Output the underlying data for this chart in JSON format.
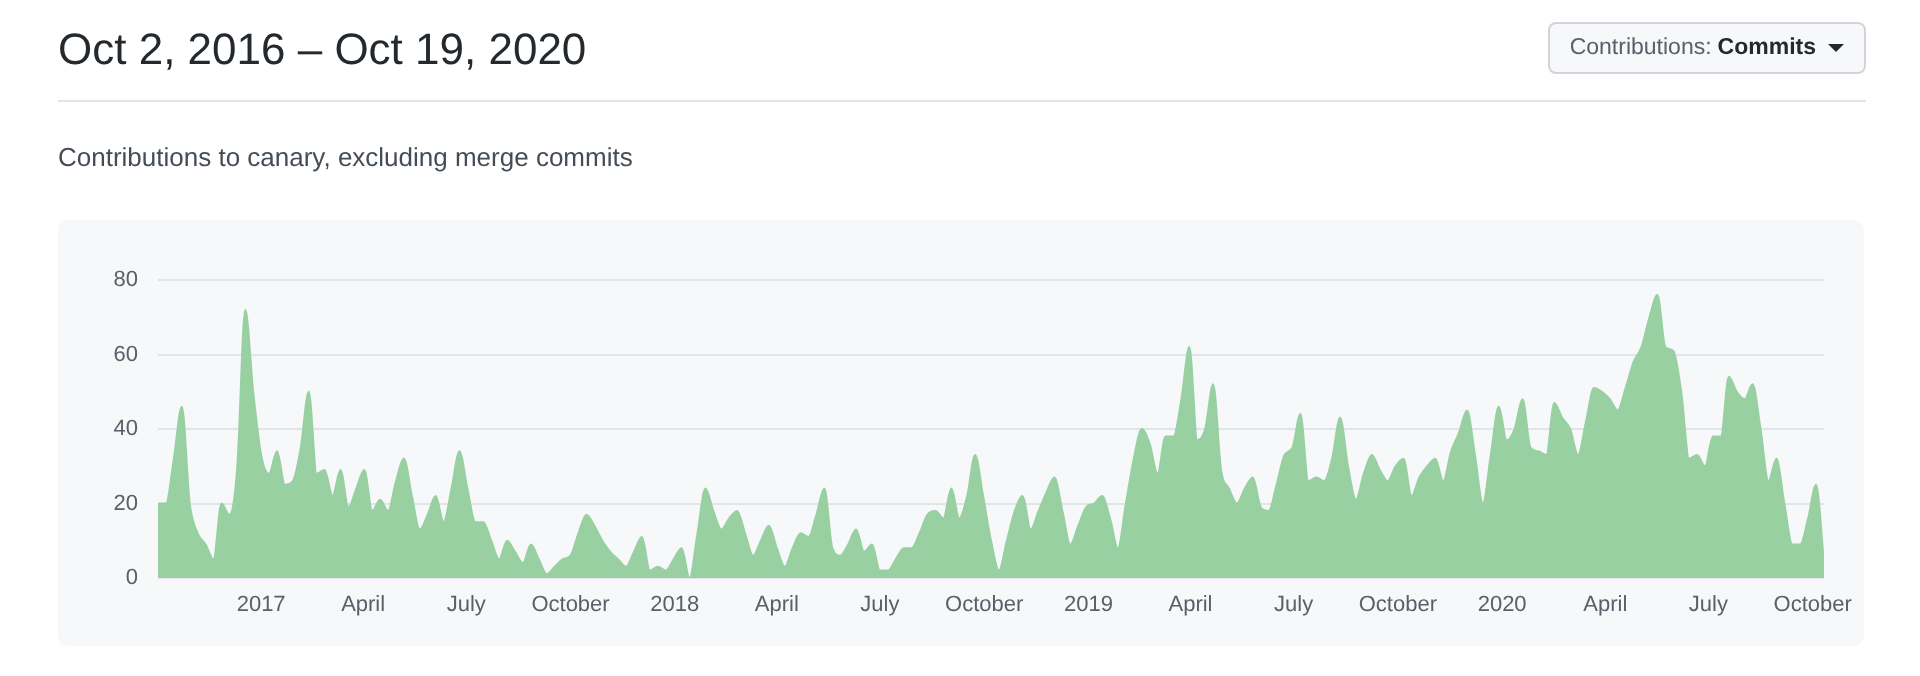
{
  "chart_data": {
    "type": "area",
    "title": "Oct 2, 2016 – Oct 19, 2020",
    "subtitle": "Contributions to canary, excluding merge commits",
    "annotations": [
      "Contributions: Commits"
    ],
    "color": "#98d0a1",
    "grid": "y",
    "xlim": [
      "2016-10-02",
      "2020-10-11"
    ],
    "xticks": [
      {
        "value": "2017-01",
        "label": "2017"
      },
      {
        "value": "2017-04",
        "label": "April"
      },
      {
        "value": "2017-07",
        "label": "July"
      },
      {
        "value": "2017-10",
        "label": "October"
      },
      {
        "value": "2018-01",
        "label": "2018"
      },
      {
        "value": "2018-04",
        "label": "April"
      },
      {
        "value": "2018-07",
        "label": "July"
      },
      {
        "value": "2018-10",
        "label": "October"
      },
      {
        "value": "2019-01",
        "label": "2019"
      },
      {
        "value": "2019-04",
        "label": "April"
      },
      {
        "value": "2019-07",
        "label": "July"
      },
      {
        "value": "2019-10",
        "label": "October"
      },
      {
        "value": "2020-01",
        "label": "2020"
      },
      {
        "value": "2020-04",
        "label": "April"
      },
      {
        "value": "2020-07",
        "label": "July"
      },
      {
        "value": "2020-10",
        "label": "October"
      }
    ],
    "ylim": [
      0,
      80
    ],
    "yticks": [
      0,
      20,
      40,
      60,
      80
    ],
    "x": [
      "2016-10-02",
      "2016-10-09",
      "2016-10-16",
      "2016-10-23",
      "2016-10-30",
      "2016-11-06",
      "2016-11-13",
      "2016-11-20",
      "2016-11-27",
      "2016-12-04",
      "2016-12-11",
      "2016-12-18",
      "2016-12-25",
      "2017-01-01",
      "2017-01-08",
      "2017-01-15",
      "2017-01-22",
      "2017-01-29",
      "2017-02-05",
      "2017-02-12",
      "2017-02-19",
      "2017-02-26",
      "2017-03-05",
      "2017-03-12",
      "2017-03-19",
      "2017-03-26",
      "2017-04-02",
      "2017-04-09",
      "2017-04-16",
      "2017-04-23",
      "2017-04-30",
      "2017-05-07",
      "2017-05-14",
      "2017-05-21",
      "2017-05-28",
      "2017-06-04",
      "2017-06-11",
      "2017-06-18",
      "2017-06-25",
      "2017-07-02",
      "2017-07-09",
      "2017-07-16",
      "2017-07-23",
      "2017-07-30",
      "2017-08-06",
      "2017-08-13",
      "2017-08-20",
      "2017-08-27",
      "2017-09-03",
      "2017-09-10",
      "2017-09-17",
      "2017-09-24",
      "2017-10-01",
      "2017-10-08",
      "2017-10-15",
      "2017-10-22",
      "2017-10-29",
      "2017-11-05",
      "2017-11-12",
      "2017-11-19",
      "2017-11-26",
      "2017-12-03",
      "2017-12-10",
      "2017-12-17",
      "2017-12-24",
      "2017-12-31",
      "2018-01-07",
      "2018-01-14",
      "2018-01-21",
      "2018-01-28",
      "2018-02-04",
      "2018-02-11",
      "2018-02-18",
      "2018-02-25",
      "2018-03-04",
      "2018-03-11",
      "2018-03-18",
      "2018-03-25",
      "2018-04-01",
      "2018-04-08",
      "2018-04-15",
      "2018-04-22",
      "2018-04-29",
      "2018-05-06",
      "2018-05-13",
      "2018-05-20",
      "2018-05-27",
      "2018-06-03",
      "2018-06-10",
      "2018-06-17",
      "2018-06-24",
      "2018-07-01",
      "2018-07-08",
      "2018-07-15",
      "2018-07-22",
      "2018-07-29",
      "2018-08-05",
      "2018-08-12",
      "2018-08-19",
      "2018-08-26",
      "2018-09-02",
      "2018-09-09",
      "2018-09-16",
      "2018-09-23",
      "2018-09-30",
      "2018-10-07",
      "2018-10-14",
      "2018-10-21",
      "2018-10-28",
      "2018-11-04",
      "2018-11-11",
      "2018-11-18",
      "2018-11-25",
      "2018-12-02",
      "2018-12-09",
      "2018-12-16",
      "2018-12-23",
      "2018-12-30",
      "2019-01-06",
      "2019-01-13",
      "2019-01-20",
      "2019-01-27",
      "2019-02-03",
      "2019-02-10",
      "2019-02-17",
      "2019-02-24",
      "2019-03-03",
      "2019-03-10",
      "2019-03-17",
      "2019-03-24",
      "2019-03-31",
      "2019-04-07",
      "2019-04-14",
      "2019-04-21",
      "2019-04-28",
      "2019-05-05",
      "2019-05-12",
      "2019-05-19",
      "2019-05-26",
      "2019-06-02",
      "2019-06-09",
      "2019-06-16",
      "2019-06-23",
      "2019-06-30",
      "2019-07-07",
      "2019-07-14",
      "2019-07-21",
      "2019-07-28",
      "2019-08-04",
      "2019-08-11",
      "2019-08-18",
      "2019-08-25",
      "2019-09-01",
      "2019-09-08",
      "2019-09-15",
      "2019-09-22",
      "2019-09-29",
      "2019-10-06",
      "2019-10-13",
      "2019-10-20",
      "2019-10-27",
      "2019-11-03",
      "2019-11-10",
      "2019-11-17",
      "2019-11-24",
      "2019-12-01",
      "2019-12-08",
      "2019-12-15",
      "2019-12-22",
      "2019-12-29",
      "2020-01-05",
      "2020-01-12",
      "2020-01-19",
      "2020-01-26",
      "2020-02-02",
      "2020-02-09",
      "2020-02-16",
      "2020-02-23",
      "2020-03-01",
      "2020-03-08",
      "2020-03-15",
      "2020-03-22",
      "2020-03-29",
      "2020-04-05",
      "2020-04-12",
      "2020-04-19",
      "2020-04-26",
      "2020-05-03",
      "2020-05-10",
      "2020-05-17",
      "2020-05-24",
      "2020-05-31",
      "2020-06-07",
      "2020-06-14",
      "2020-06-21",
      "2020-06-28",
      "2020-07-05",
      "2020-07-12",
      "2020-07-19",
      "2020-07-26",
      "2020-08-02",
      "2020-08-09",
      "2020-08-16",
      "2020-08-23",
      "2020-08-30",
      "2020-09-06",
      "2020-09-13",
      "2020-09-20",
      "2020-09-27",
      "2020-10-04",
      "2020-10-11"
    ],
    "values": [
      20,
      20,
      32,
      46,
      20,
      12,
      9,
      5,
      20,
      17,
      30,
      72,
      50,
      33,
      28,
      34,
      25,
      26,
      35,
      50,
      28,
      29,
      22,
      29,
      19,
      24,
      29,
      18,
      21,
      18,
      26,
      32,
      22,
      13,
      17,
      22,
      15,
      24,
      34,
      24,
      15,
      15,
      10,
      5,
      10,
      7,
      4,
      9,
      5,
      1,
      3,
      5,
      6,
      12,
      17,
      14,
      10,
      7,
      5,
      3,
      7,
      11,
      2,
      3,
      2,
      5,
      8,
      0,
      12,
      24,
      18,
      13,
      16,
      18,
      12,
      6,
      10,
      14,
      8,
      3,
      8,
      12,
      11,
      17,
      24,
      8,
      6,
      9,
      13,
      7,
      9,
      2,
      2,
      5,
      8,
      8,
      12,
      17,
      18,
      16,
      24,
      16,
      22,
      33,
      22,
      10,
      2,
      10,
      18,
      22,
      13,
      18,
      23,
      27,
      18,
      9,
      14,
      19,
      20,
      22,
      16,
      8,
      20,
      32,
      40,
      36,
      28,
      38,
      38,
      48,
      62,
      37,
      40,
      52,
      29,
      24,
      20,
      24,
      27,
      19,
      18,
      25,
      33,
      35,
      44,
      26,
      27,
      26,
      32,
      43,
      30,
      21,
      28,
      33,
      29,
      26,
      30,
      32,
      22,
      27,
      30,
      32,
      26,
      34,
      39,
      45,
      33,
      20,
      33,
      46,
      37,
      40,
      48,
      35,
      34,
      33,
      47,
      43,
      40,
      33,
      42,
      51,
      50,
      48,
      45,
      51,
      58,
      62,
      70,
      76,
      62,
      61,
      50,
      32,
      33,
      30,
      38,
      38,
      54,
      50,
      48,
      52,
      40,
      26,
      32,
      20,
      9,
      9,
      16,
      25,
      4
    ]
  }
}
